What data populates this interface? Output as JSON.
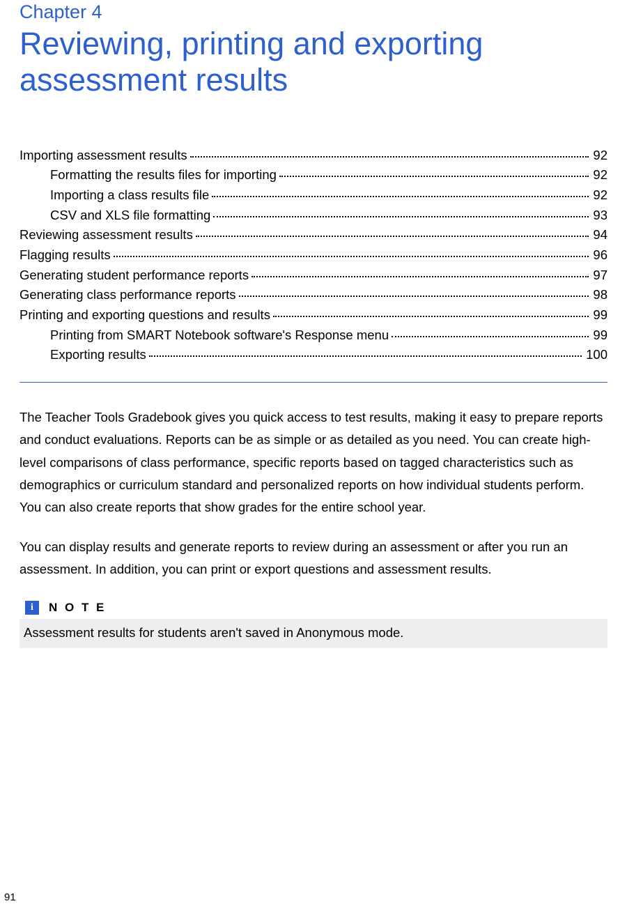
{
  "colors": {
    "heading": "#2d5fcf",
    "text": "#000000",
    "divider": "#2d5fcf",
    "note_icon_bg": "#2d5fcf",
    "note_icon_fg": "#ffffff",
    "note_body_bg": "#eeeeee"
  },
  "chapter": {
    "label": "Chapter 4",
    "title": "Reviewing, printing and exporting assessment results"
  },
  "toc": [
    {
      "label": "Importing assessment results",
      "page": "92",
      "indent": 0
    },
    {
      "label": "Formatting the results files for importing",
      "page": "92",
      "indent": 1
    },
    {
      "label": "Importing a class results file",
      "page": "92",
      "indent": 1
    },
    {
      "label": "CSV and XLS file formatting",
      "page": "93",
      "indent": 1
    },
    {
      "label": "Reviewing assessment results",
      "page": "94",
      "indent": 0
    },
    {
      "label": "Flagging results",
      "page": "96",
      "indent": 0
    },
    {
      "label": "Generating student performance reports",
      "page": "97",
      "indent": 0
    },
    {
      "label": "Generating class performance reports",
      "page": "98",
      "indent": 0
    },
    {
      "label": "Printing and exporting questions and results",
      "page": "99",
      "indent": 0
    },
    {
      "label": "Printing from SMART Notebook software's Response menu",
      "page": "99",
      "indent": 1
    },
    {
      "label": "Exporting results",
      "page": "100",
      "indent": 1
    }
  ],
  "paragraphs": {
    "p1": "The Teacher Tools Gradebook gives you quick access to test results, making it easy to prepare reports and conduct evaluations. Reports can be as simple or as detailed as you need. You can create high-level comparisons of class performance, specific reports based on tagged characteristics such as demographics or curriculum standard and personalized reports on how individual students perform. You can also create reports that show grades for the entire school year.",
    "p2": "You can display results and generate reports to review during an assessment or after you run an assessment. In addition, you can print or export questions and assessment results."
  },
  "note": {
    "icon_glyph": "i",
    "title": "N O T E",
    "body": "Assessment results for students aren't saved in Anonymous mode."
  },
  "page_number": "91"
}
